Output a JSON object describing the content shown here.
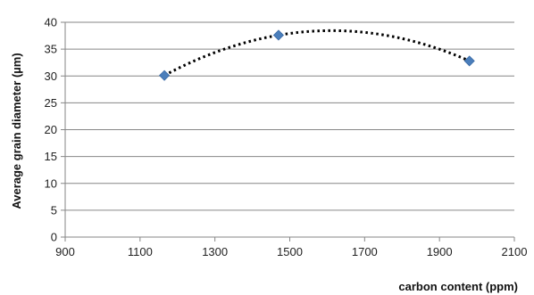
{
  "chart_data": {
    "type": "scatter",
    "xlabel": "carbon content (ppm)",
    "ylabel": "Average grain diameter (µm)",
    "xlim": [
      900,
      2100
    ],
    "ylim": [
      0,
      40
    ],
    "xticks": [
      900,
      1100,
      1300,
      1500,
      1700,
      1900,
      2100
    ],
    "yticks": [
      0,
      5,
      10,
      15,
      20,
      25,
      30,
      35,
      40
    ],
    "grid": "horizontal",
    "series": [
      {
        "points": [
          {
            "x": 1165,
            "y": 30.1
          },
          {
            "x": 1470,
            "y": 37.6
          },
          {
            "x": 1980,
            "y": 32.8
          }
        ],
        "marker": "diamond",
        "color": "#4a7ebb",
        "trendline": "polynomial",
        "trendline_style": "dotted",
        "trendline_color": "#000000"
      }
    ]
  }
}
